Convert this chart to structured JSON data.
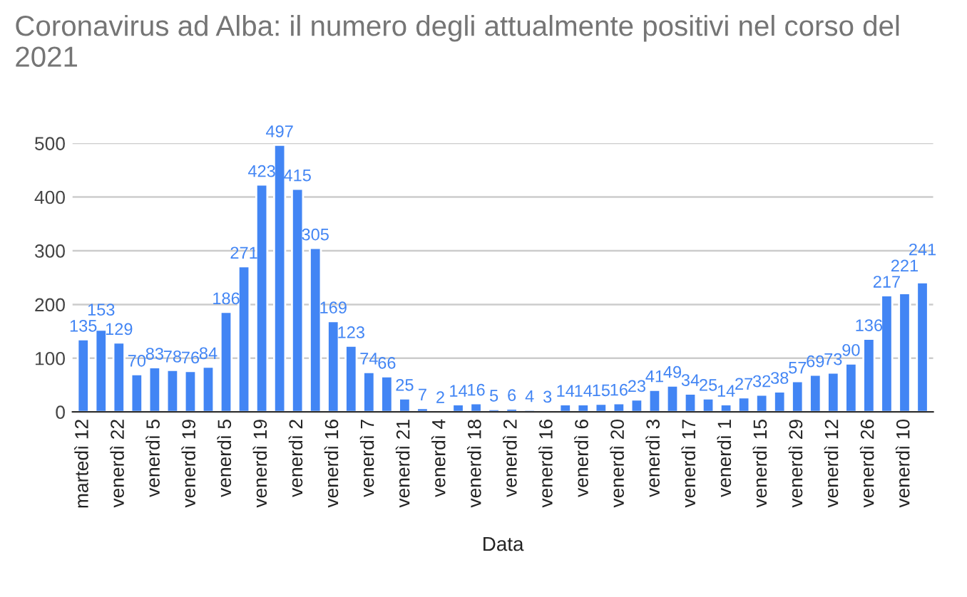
{
  "chart_data": {
    "type": "bar",
    "title": "Coronavirus ad Alba: il numero degli attualmente positivi nel corso del 2021",
    "xlabel": "Data",
    "categories": [
      "martedì 12",
      null,
      "venerdì 22",
      null,
      "venerdì 5",
      null,
      "venerdì 19",
      null,
      "venerdì 5",
      null,
      "venerdì 19",
      null,
      "venerdì 2",
      null,
      "venerdì 16",
      null,
      "venerdì 7",
      null,
      "venerdì 21",
      null,
      "venerdì 4",
      null,
      "venerdì 18",
      null,
      "venerdì 2",
      null,
      "venerdì 16",
      null,
      "venerdì 6",
      null,
      "venerdì 20",
      null,
      "venerdì 3",
      null,
      "venerdì 17",
      null,
      "venerdì 1",
      null,
      "venerdì 15",
      null,
      "venerdì 29",
      null,
      "venerdì 12",
      null,
      "venerdì 26",
      null,
      "venerdì 10",
      null
    ],
    "values": [
      135,
      153,
      129,
      70,
      83,
      78,
      76,
      84,
      186,
      271,
      423,
      497,
      415,
      305,
      169,
      123,
      74,
      66,
      25,
      7,
      2,
      14,
      16,
      5,
      6,
      4,
      3,
      14,
      14,
      15,
      16,
      23,
      41,
      49,
      34,
      25,
      14,
      27,
      32,
      38,
      57,
      69,
      73,
      90,
      136,
      217,
      221,
      241
    ],
    "color": "#4285f4",
    "data_labels": true,
    "ylim": [
      0,
      500
    ],
    "yticks": [
      0,
      100,
      200,
      300,
      400,
      500
    ],
    "grid": "y"
  }
}
